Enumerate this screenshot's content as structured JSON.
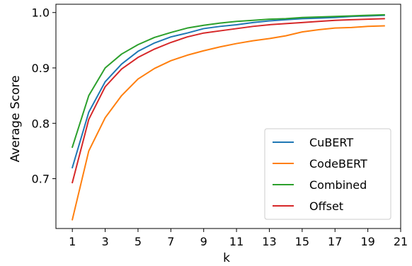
{
  "chart_data": {
    "type": "line",
    "xlabel": "k",
    "ylabel": "Average Score",
    "xlim": [
      0.0,
      21.0
    ],
    "ylim": [
      0.61,
      1.015
    ],
    "xticks": [
      1,
      3,
      5,
      7,
      9,
      11,
      13,
      15,
      17,
      19,
      21
    ],
    "yticks": [
      0.7,
      0.8,
      0.9,
      1.0
    ],
    "ytick_labels": [
      "0.7",
      "0.8",
      "0.9",
      "1.0"
    ],
    "legend_position": "lower-right",
    "grid": false,
    "x": [
      1,
      2,
      3,
      4,
      5,
      6,
      7,
      8,
      9,
      10,
      11,
      12,
      13,
      14,
      15,
      16,
      17,
      18,
      19,
      20
    ],
    "series": [
      {
        "name": "CuBERT",
        "color": "#1f77b4",
        "values": [
          0.72,
          0.82,
          0.875,
          0.907,
          0.93,
          0.945,
          0.956,
          0.963,
          0.971,
          0.975,
          0.978,
          0.982,
          0.985,
          0.987,
          0.989,
          0.99,
          0.991,
          0.993,
          0.994,
          0.995
        ]
      },
      {
        "name": "CodeBERT",
        "color": "#ff7f0e",
        "values": [
          0.626,
          0.75,
          0.81,
          0.85,
          0.88,
          0.899,
          0.913,
          0.923,
          0.931,
          0.938,
          0.944,
          0.949,
          0.953,
          0.958,
          0.965,
          0.969,
          0.972,
          0.973,
          0.975,
          0.976
        ]
      },
      {
        "name": "Combined",
        "color": "#2ca02c",
        "values": [
          0.757,
          0.85,
          0.9,
          0.925,
          0.942,
          0.955,
          0.964,
          0.972,
          0.977,
          0.981,
          0.984,
          0.986,
          0.988,
          0.989,
          0.991,
          0.992,
          0.993,
          0.994,
          0.995,
          0.996
        ]
      },
      {
        "name": "Offset",
        "color": "#d62728",
        "values": [
          0.693,
          0.807,
          0.866,
          0.898,
          0.919,
          0.934,
          0.946,
          0.956,
          0.963,
          0.967,
          0.971,
          0.975,
          0.978,
          0.98,
          0.982,
          0.984,
          0.986,
          0.987,
          0.988,
          0.989
        ]
      }
    ]
  }
}
